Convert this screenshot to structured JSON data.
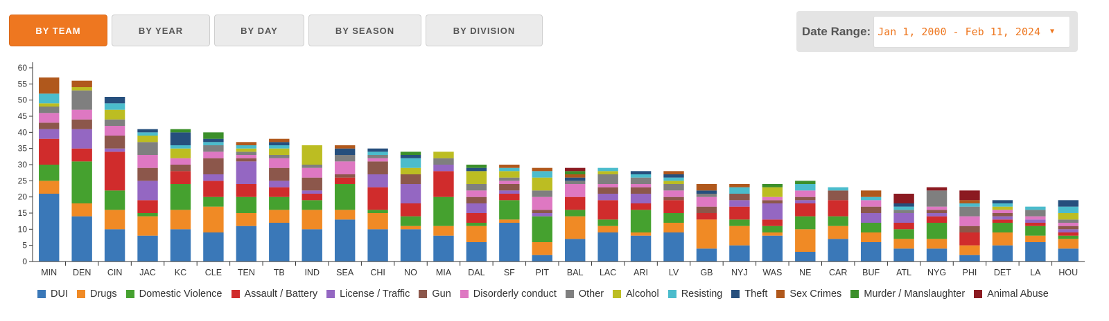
{
  "tabs": [
    {
      "label": "BY TEAM",
      "active": true
    },
    {
      "label": "BY YEAR",
      "active": false
    },
    {
      "label": "BY DAY",
      "active": false
    },
    {
      "label": "BY SEASON",
      "active": false
    },
    {
      "label": "BY DIVISION",
      "active": false
    }
  ],
  "date_range": {
    "label": "Date Range:",
    "value": "Jan 1, 2000 - Feb 11, 2024",
    "caret_icon": "caret-down-icon"
  },
  "colors": {
    "accent": "#ee7720"
  },
  "chart_data": {
    "type": "bar",
    "stacked": true,
    "title": "",
    "xlabel": "",
    "ylabel": "",
    "ylim": [
      0,
      60
    ],
    "yticks": [
      0,
      5,
      10,
      15,
      20,
      25,
      30,
      35,
      40,
      45,
      50,
      55,
      60
    ],
    "grid": false,
    "legend_position": "bottom",
    "categories": [
      "MIN",
      "DEN",
      "CIN",
      "JAC",
      "KC",
      "CLE",
      "TEN",
      "TB",
      "IND",
      "SEA",
      "CHI",
      "NO",
      "MIA",
      "DAL",
      "SF",
      "PIT",
      "BAL",
      "LAC",
      "ARI",
      "LV",
      "GB",
      "NYJ",
      "WAS",
      "NE",
      "CAR",
      "BUF",
      "ATL",
      "NYG",
      "PHI",
      "DET",
      "LA",
      "HOU"
    ],
    "series": [
      {
        "name": "DUI",
        "color": "#3a78b8",
        "values": [
          21,
          14,
          10,
          8,
          10,
          9,
          11,
          12,
          10,
          13,
          10,
          10,
          8,
          6,
          12,
          2,
          7,
          9,
          8,
          9,
          4,
          5,
          8,
          3,
          7,
          6,
          4,
          4,
          2,
          5,
          6,
          4
        ]
      },
      {
        "name": "Drugs",
        "color": "#f08a25",
        "values": [
          4,
          4,
          6,
          6,
          6,
          8,
          4,
          4,
          6,
          3,
          5,
          1,
          3,
          5,
          1,
          4,
          7,
          2,
          1,
          3,
          9,
          6,
          1,
          7,
          4,
          3,
          3,
          3,
          3,
          4,
          2,
          3
        ]
      },
      {
        "name": "Domestic Violence",
        "color": "#45a12f",
        "values": [
          5,
          13,
          6,
          1,
          8,
          3,
          5,
          4,
          3,
          8,
          1,
          3,
          9,
          1,
          6,
          8,
          2,
          2,
          7,
          3,
          0,
          2,
          2,
          4,
          3,
          3,
          3,
          5,
          0,
          3,
          3,
          1
        ]
      },
      {
        "name": "Assault / Battery",
        "color": "#d02c2c",
        "values": [
          8,
          4,
          12,
          4,
          4,
          5,
          4,
          3,
          2,
          2,
          7,
          4,
          8,
          3,
          2,
          0,
          4,
          6,
          2,
          4,
          2,
          4,
          2,
          4,
          5,
          0,
          2,
          2,
          4,
          1,
          1,
          1
        ]
      },
      {
        "name": "License / Traffic",
        "color": "#9467c2",
        "values": [
          3,
          6,
          1,
          6,
          0,
          2,
          7,
          2,
          1,
          0,
          4,
          6,
          2,
          3,
          1,
          1,
          0,
          2,
          3,
          0,
          0,
          2,
          5,
          1,
          0,
          3,
          3,
          1,
          0,
          1,
          1,
          1
        ]
      },
      {
        "name": "Gun",
        "color": "#8c574b",
        "values": [
          2,
          3,
          4,
          4,
          2,
          5,
          1,
          4,
          4,
          1,
          4,
          3,
          0,
          2,
          2,
          1,
          0,
          2,
          2,
          1,
          2,
          2,
          1,
          1,
          3,
          2,
          0,
          1,
          2,
          1,
          0,
          1
        ]
      },
      {
        "name": "Disorderly conduct",
        "color": "#de78c2",
        "values": [
          3,
          3,
          3,
          4,
          2,
          2,
          1,
          3,
          3,
          4,
          1,
          0,
          0,
          2,
          1,
          4,
          4,
          1,
          1,
          2,
          3,
          0,
          1,
          2,
          0,
          2,
          0,
          1,
          3,
          1,
          1,
          1
        ]
      },
      {
        "name": "Other",
        "color": "#7f7f7f",
        "values": [
          2,
          6,
          2,
          4,
          0,
          2,
          1,
          1,
          1,
          2,
          1,
          0,
          2,
          2,
          1,
          2,
          1,
          3,
          2,
          2,
          1,
          0,
          0,
          0,
          0,
          0,
          1,
          5,
          3,
          0,
          2,
          1
        ]
      },
      {
        "name": "Alcohol",
        "color": "#bcbd22",
        "values": [
          1,
          1,
          3,
          2,
          3,
          0,
          1,
          2,
          6,
          0,
          0,
          2,
          2,
          4,
          2,
          4,
          0,
          1,
          0,
          1,
          0,
          0,
          3,
          0,
          0,
          0,
          0,
          0,
          0,
          1,
          0,
          2
        ]
      },
      {
        "name": "Resisting",
        "color": "#4bbccc",
        "values": [
          3,
          0,
          2,
          1,
          1,
          1,
          1,
          1,
          0,
          0,
          1,
          3,
          0,
          0,
          1,
          2,
          0,
          1,
          1,
          1,
          0,
          2,
          0,
          2,
          1,
          1,
          1,
          0,
          1,
          1,
          1,
          2
        ]
      },
      {
        "name": "Theft",
        "color": "#264f7d",
        "values": [
          0,
          0,
          2,
          1,
          4,
          1,
          0,
          1,
          0,
          2,
          1,
          1,
          0,
          1,
          0,
          0,
          1,
          0,
          1,
          1,
          1,
          0,
          0,
          0,
          0,
          0,
          1,
          0,
          0,
          1,
          0,
          2
        ]
      },
      {
        "name": "Sex Crimes",
        "color": "#b0581c",
        "values": [
          5,
          2,
          0,
          0,
          0,
          0,
          1,
          1,
          0,
          1,
          0,
          0,
          0,
          0,
          1,
          1,
          1,
          0,
          0,
          1,
          2,
          1,
          0,
          0,
          0,
          2,
          0,
          0,
          1,
          0,
          0,
          0
        ]
      },
      {
        "name": "Murder / Manslaughter",
        "color": "#3b8f2a",
        "values": [
          0,
          0,
          0,
          0,
          1,
          2,
          0,
          0,
          0,
          0,
          0,
          1,
          0,
          1,
          0,
          0,
          1,
          0,
          0,
          0,
          0,
          0,
          1,
          1,
          0,
          0,
          0,
          0,
          0,
          0,
          0,
          0
        ]
      },
      {
        "name": "Animal Abuse",
        "color": "#8b1a21",
        "values": [
          0,
          0,
          0,
          0,
          0,
          0,
          0,
          0,
          0,
          0,
          0,
          0,
          0,
          0,
          0,
          0,
          1,
          0,
          0,
          0,
          0,
          0,
          0,
          0,
          0,
          0,
          3,
          1,
          3,
          0,
          0,
          0
        ]
      }
    ]
  }
}
